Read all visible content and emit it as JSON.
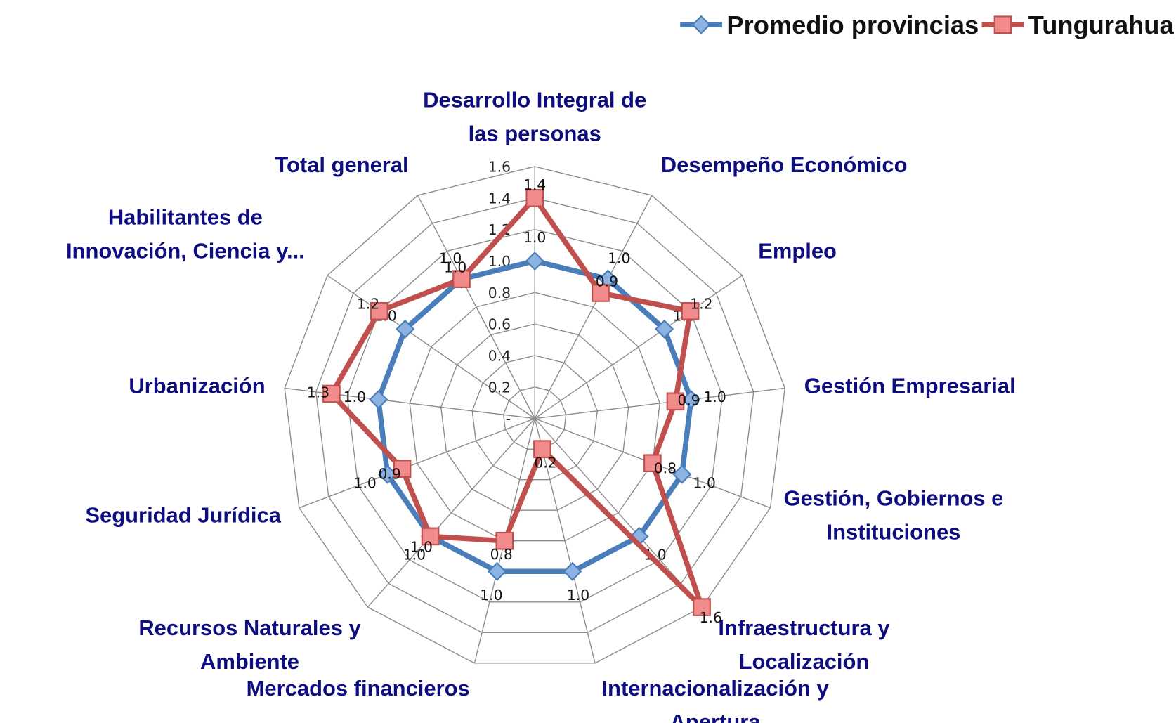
{
  "chart_data": {
    "type": "radar",
    "categories": [
      "Desarrollo Integral de las personas",
      "Desempeño Económico",
      "Empleo",
      "Gestión Empresarial",
      "Gestión, Gobiernos e Instituciones",
      "Infraestructura y Localización",
      "Internacionalización y Apertura",
      "Mercados financieros",
      "Recursos Naturales y Ambiente",
      "Seguridad Jurídica",
      "Urbanización",
      "Habilitantes de Innovación, Ciencia y...",
      "Total general"
    ],
    "series": [
      {
        "name": "Promedio provincias",
        "color": "#4a7ebb",
        "values": [
          1.0,
          1.0,
          1.0,
          1.0,
          1.0,
          1.0,
          1.0,
          1.0,
          1.0,
          1.0,
          1.0,
          1.0,
          1.0
        ],
        "value_labels": [
          "1.0",
          "1.0",
          "1.0",
          "1.0",
          "1.0",
          "1.0",
          "1.0",
          "1.0",
          "1.0",
          "1.0",
          "1.0",
          "1.0",
          "1.0"
        ]
      },
      {
        "name": "Tungurahua",
        "color": "#c0504d",
        "values": [
          1.4,
          0.9,
          1.2,
          0.9,
          0.8,
          1.6,
          0.2,
          0.8,
          1.0,
          0.9,
          1.3,
          1.2,
          1.0
        ],
        "value_labels": [
          "1.4",
          "0.9",
          "1.2",
          "0.9",
          "0.8",
          "1.6",
          "0.2",
          "0.8",
          "1.0",
          "0.9",
          "1.3",
          "1.2",
          "1.0"
        ]
      }
    ],
    "rlim": [
      0,
      1.6
    ],
    "rticks": [
      {
        "value": 0,
        "label": "-"
      },
      0.2,
      0.4,
      0.6,
      0.8,
      {
        "value": 1.0,
        "label": "1.0"
      },
      1.2,
      1.4,
      1.6
    ],
    "grid": true,
    "legend": "top-right"
  }
}
